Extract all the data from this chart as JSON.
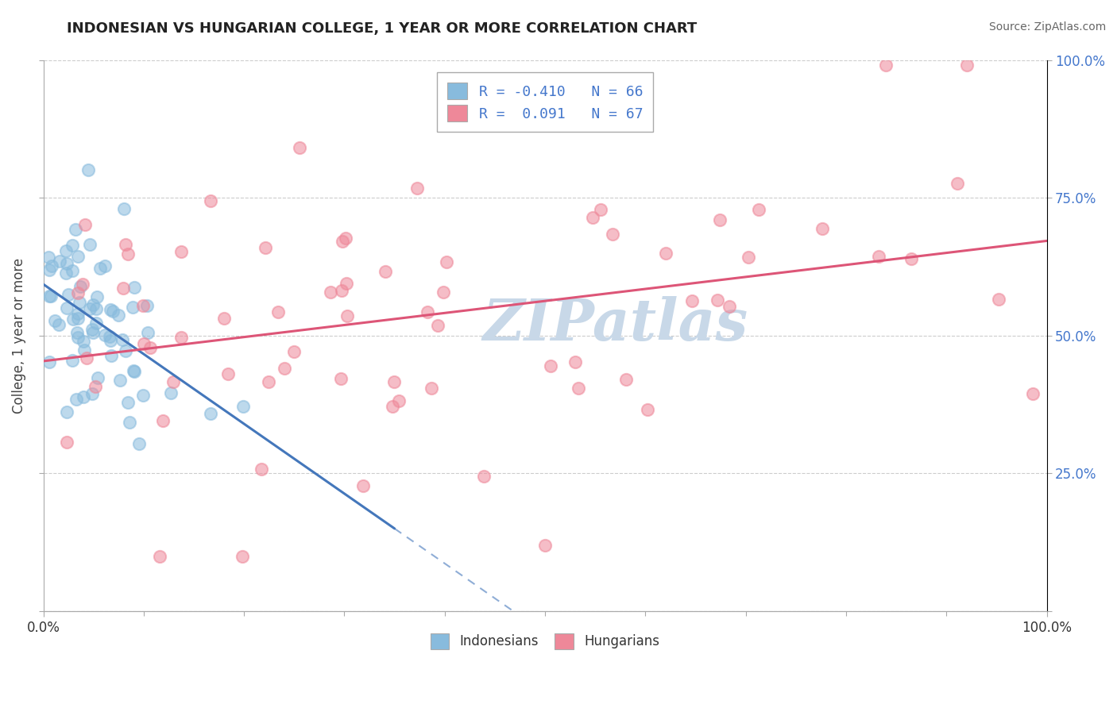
{
  "title": "INDONESIAN VS HUNGARIAN COLLEGE, 1 YEAR OR MORE CORRELATION CHART",
  "source": "Source: ZipAtlas.com",
  "ylabel": "College, 1 year or more",
  "xlim": [
    0.0,
    1.0
  ],
  "ylim": [
    0.0,
    1.0
  ],
  "legend_label_ind": "R = -0.410   N = 66",
  "legend_label_hun": "R =  0.091   N = 67",
  "indonesian_color": "#88bbdd",
  "hungarian_color": "#ee8899",
  "trend_ind_color": "#4477bb",
  "trend_hun_color": "#dd5577",
  "watermark": "ZIPatlas",
  "watermark_color": "#c8d8e8",
  "grid_color": "#cccccc",
  "tick_label_color": "#4477cc",
  "title_color": "#222222",
  "source_color": "#666666"
}
